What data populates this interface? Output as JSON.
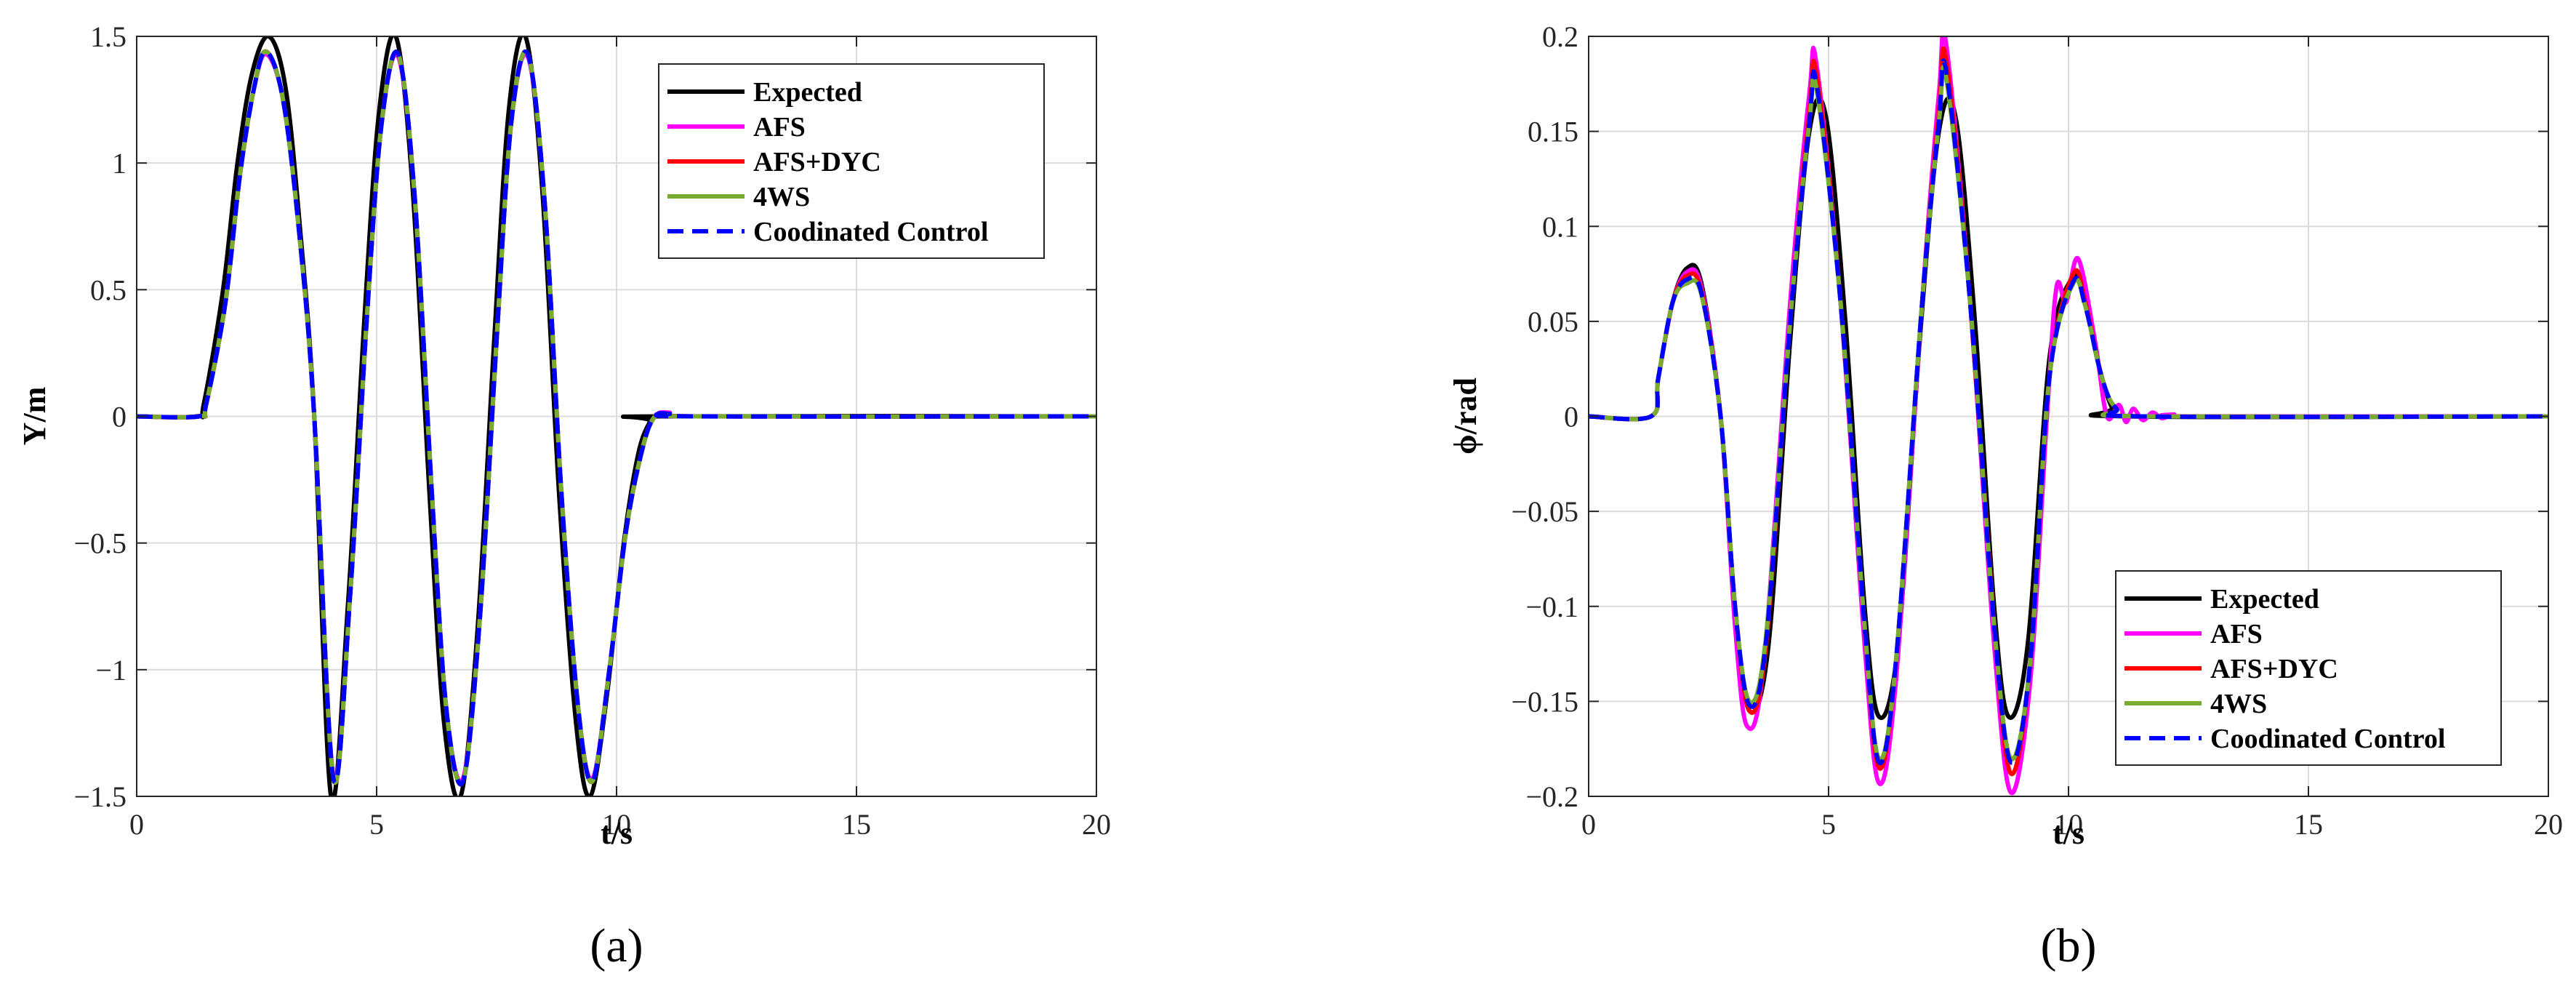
{
  "colors": {
    "Expected": "#000000",
    "AFS": "#ff00ff",
    "AFS+DYC": "#ff0000",
    "4WS": "#77ac30",
    "Coodinated Control": "#0000ff",
    "grid": "#dcdcdc",
    "axis": "#262626"
  },
  "chart_data": [
    {
      "type": "line",
      "panel_label": "(a)",
      "xlabel": "t/s",
      "ylabel": "Y/m",
      "xlim": [
        0,
        20
      ],
      "ylim": [
        -1.5,
        1.5
      ],
      "xticks": [
        0,
        5,
        10,
        15,
        20
      ],
      "yticks": [
        -1.5,
        -1,
        -0.5,
        0,
        0.5,
        1,
        1.5
      ],
      "xtick_labels": [
        "0",
        "5",
        "10",
        "15",
        "20"
      ],
      "ytick_labels": [
        "−1.5",
        "−1",
        "−0.5",
        "0",
        "0.5",
        "1",
        "1.5"
      ],
      "grid": true,
      "legend_position": "top-right",
      "series": [
        {
          "name": "Expected",
          "style": "solid",
          "x": [
            0,
            1.25,
            1.4,
            1.8,
            2.1,
            2.4,
            2.75,
            3.1,
            3.4,
            3.7,
            4.05,
            4.4,
            4.75,
            5.05,
            5.4,
            5.75,
            6.1,
            6.4,
            6.75,
            7.1,
            7.45,
            7.75,
            8.1,
            8.45,
            8.8,
            9.15,
            9.45,
            9.8,
            10.15,
            10.45,
            10.7,
            10.85,
            20
          ],
          "y": [
            0,
            0,
            0.05,
            0.5,
            1.0,
            1.35,
            1.5,
            1.3,
            0.75,
            0,
            -1.5,
            -0.75,
            0.4,
            1.2,
            1.5,
            0.9,
            -0.3,
            -1.2,
            -1.5,
            -0.85,
            0.3,
            1.2,
            1.5,
            0.9,
            -0.3,
            -1.2,
            -1.5,
            -1.1,
            -0.5,
            -0.15,
            -0.02,
            0,
            0
          ]
        },
        {
          "name": "AFS",
          "style": "solid",
          "x": [
            0,
            1.3,
            1.45,
            1.85,
            2.15,
            2.45,
            2.7,
            3.05,
            3.4,
            3.7,
            4.1,
            4.45,
            4.8,
            5.1,
            5.45,
            5.8,
            6.15,
            6.45,
            6.8,
            7.15,
            7.5,
            7.8,
            8.15,
            8.5,
            8.85,
            9.2,
            9.5,
            9.85,
            10.2,
            10.55,
            10.8,
            11.1,
            11.6,
            20
          ],
          "y": [
            0,
            0,
            0.05,
            0.45,
            0.95,
            1.3,
            1.43,
            1.25,
            0.7,
            0,
            -1.42,
            -0.7,
            0.4,
            1.15,
            1.42,
            0.85,
            -0.3,
            -1.15,
            -1.43,
            -0.8,
            0.3,
            1.15,
            1.42,
            0.85,
            -0.3,
            -1.15,
            -1.43,
            -1.0,
            -0.45,
            -0.12,
            0.0,
            0.015,
            0,
            0
          ]
        },
        {
          "name": "AFS+DYC",
          "style": "solid",
          "x": [
            0,
            1.3,
            1.45,
            1.85,
            2.15,
            2.45,
            2.7,
            3.05,
            3.4,
            3.7,
            4.1,
            4.45,
            4.8,
            5.1,
            5.45,
            5.8,
            6.15,
            6.45,
            6.8,
            7.15,
            7.5,
            7.8,
            8.15,
            8.5,
            8.85,
            9.2,
            9.5,
            9.85,
            10.2,
            10.55,
            10.8,
            11.1,
            11.6,
            20
          ],
          "y": [
            0,
            0,
            0.05,
            0.45,
            0.95,
            1.3,
            1.44,
            1.25,
            0.7,
            0,
            -1.43,
            -0.7,
            0.4,
            1.15,
            1.43,
            0.85,
            -0.3,
            -1.15,
            -1.44,
            -0.8,
            0.3,
            1.15,
            1.43,
            0.85,
            -0.3,
            -1.15,
            -1.44,
            -1.0,
            -0.45,
            -0.12,
            0.0,
            0.01,
            0,
            0
          ]
        },
        {
          "name": "4WS",
          "style": "solid",
          "x": [
            0,
            1.3,
            1.45,
            1.85,
            2.15,
            2.45,
            2.7,
            3.05,
            3.4,
            3.7,
            4.1,
            4.45,
            4.8,
            5.1,
            5.45,
            5.8,
            6.15,
            6.45,
            6.8,
            7.15,
            7.5,
            7.8,
            8.15,
            8.5,
            8.85,
            9.2,
            9.5,
            9.85,
            10.2,
            10.55,
            10.8,
            11.1,
            11.6,
            20
          ],
          "y": [
            0,
            0,
            0.05,
            0.45,
            0.95,
            1.3,
            1.44,
            1.25,
            0.7,
            0,
            -1.43,
            -0.7,
            0.4,
            1.15,
            1.43,
            0.85,
            -0.3,
            -1.15,
            -1.44,
            -0.8,
            0.3,
            1.15,
            1.43,
            0.85,
            -0.3,
            -1.15,
            -1.44,
            -1.0,
            -0.45,
            -0.12,
            0.0,
            0.01,
            0,
            0
          ]
        },
        {
          "name": "Coodinated Control",
          "style": "dashed",
          "x": [
            0,
            1.3,
            1.45,
            1.85,
            2.15,
            2.45,
            2.7,
            3.05,
            3.4,
            3.7,
            4.1,
            4.45,
            4.8,
            5.1,
            5.45,
            5.8,
            6.15,
            6.45,
            6.8,
            7.15,
            7.5,
            7.8,
            8.15,
            8.5,
            8.85,
            9.2,
            9.5,
            9.85,
            10.2,
            10.55,
            10.8,
            11.1,
            11.6,
            20
          ],
          "y": [
            0,
            0,
            0.05,
            0.45,
            0.95,
            1.3,
            1.44,
            1.25,
            0.7,
            0,
            -1.43,
            -0.7,
            0.4,
            1.15,
            1.43,
            0.85,
            -0.3,
            -1.15,
            -1.44,
            -0.8,
            0.3,
            1.15,
            1.43,
            0.85,
            -0.3,
            -1.15,
            -1.44,
            -1.0,
            -0.45,
            -0.12,
            0.0,
            0.01,
            0,
            0
          ]
        }
      ]
    },
    {
      "type": "line",
      "panel_label": "(b)",
      "xlabel": "t/s",
      "ylabel": "ϕ/rad",
      "xlim": [
        0,
        20
      ],
      "ylim": [
        -0.2,
        0.2
      ],
      "xticks": [
        0,
        5,
        10,
        15,
        20
      ],
      "yticks": [
        -0.2,
        -0.15,
        -0.1,
        -0.05,
        0,
        0.05,
        0.1,
        0.15,
        0.2
      ],
      "xtick_labels": [
        "0",
        "5",
        "10",
        "15",
        "20"
      ],
      "ytick_labels": [
        "−0.2",
        "−0.15",
        "−0.1",
        "−0.05",
        "0",
        "0.05",
        "0.1",
        "0.15",
        "0.2"
      ],
      "grid": true,
      "legend_position": "bottom-right",
      "series": [
        {
          "name": "Expected",
          "style": "solid",
          "x": [
            0,
            1.3,
            1.45,
            1.75,
            2.05,
            2.35,
            2.75,
            3.05,
            3.35,
            3.75,
            4.2,
            4.6,
            4.95,
            5.35,
            5.75,
            6.05,
            6.45,
            6.9,
            7.3,
            7.65,
            8.05,
            8.45,
            8.75,
            9.15,
            9.6,
            10.05,
            10.3,
            10.6,
            10.9,
            11.2,
            20
          ],
          "y": [
            0,
            0,
            0.02,
            0.06,
            0.078,
            0.07,
            0,
            -0.1,
            -0.155,
            -0.12,
            0.04,
            0.15,
            0.157,
            0.05,
            -0.1,
            -0.158,
            -0.12,
            0.04,
            0.15,
            0.157,
            0.05,
            -0.1,
            -0.158,
            -0.12,
            0.03,
            0.072,
            0.065,
            0.03,
            0.005,
            0,
            0
          ]
        },
        {
          "name": "AFS",
          "style": "solid",
          "x": [
            0,
            1.3,
            1.45,
            1.75,
            2.05,
            2.35,
            2.75,
            3.05,
            3.3,
            3.65,
            4.2,
            4.6,
            4.75,
            5.25,
            5.75,
            6.05,
            6.4,
            6.95,
            7.3,
            7.45,
            7.95,
            8.45,
            8.8,
            9.2,
            9.55,
            9.75,
            9.95,
            10.2,
            10.55,
            10.8,
            11.05,
            11.2,
            11.35,
            11.55,
            11.75,
            11.95,
            12.2,
            12.6,
            20
          ],
          "y": [
            0,
            0,
            0.02,
            0.06,
            0.076,
            0.068,
            0,
            -0.11,
            -0.163,
            -0.13,
            0.06,
            0.17,
            0.185,
            0.06,
            -0.12,
            -0.193,
            -0.14,
            0.06,
            0.17,
            0.196,
            0.06,
            -0.12,
            -0.198,
            -0.14,
            0.0,
            0.068,
            0.06,
            0.083,
            0.04,
            0.0,
            0.006,
            -0.003,
            0.004,
            -0.002,
            0.002,
            -0.001,
            0.001,
            0,
            0
          ]
        },
        {
          "name": "AFS+DYC",
          "style": "solid",
          "x": [
            0,
            1.3,
            1.45,
            1.75,
            2.05,
            2.35,
            2.75,
            3.05,
            3.35,
            3.7,
            4.2,
            4.6,
            4.75,
            5.25,
            5.75,
            6.05,
            6.4,
            6.95,
            7.3,
            7.45,
            7.95,
            8.45,
            8.8,
            9.2,
            9.6,
            10.1,
            10.35,
            10.7,
            11.0,
            11.5,
            20
          ],
          "y": [
            0,
            0,
            0.02,
            0.06,
            0.074,
            0.066,
            0,
            -0.1,
            -0.155,
            -0.12,
            0.05,
            0.16,
            0.18,
            0.06,
            -0.11,
            -0.185,
            -0.13,
            0.06,
            0.16,
            0.188,
            0.06,
            -0.11,
            -0.188,
            -0.13,
            0.02,
            0.075,
            0.06,
            0.02,
            0.004,
            0,
            0
          ]
        },
        {
          "name": "4WS",
          "style": "solid",
          "x": [
            0,
            1.3,
            1.45,
            1.75,
            2.05,
            2.35,
            2.75,
            3.05,
            3.35,
            3.7,
            4.2,
            4.6,
            4.75,
            5.25,
            5.75,
            6.05,
            6.4,
            6.95,
            7.3,
            7.45,
            7.95,
            8.45,
            8.8,
            9.2,
            9.6,
            10.1,
            10.35,
            10.7,
            11.0,
            11.5,
            20
          ],
          "y": [
            0,
            0,
            0.02,
            0.06,
            0.07,
            0.064,
            0,
            -0.1,
            -0.15,
            -0.115,
            0.05,
            0.155,
            0.172,
            0.06,
            -0.11,
            -0.18,
            -0.13,
            0.06,
            0.155,
            0.178,
            0.06,
            -0.11,
            -0.18,
            -0.13,
            0.02,
            0.07,
            0.058,
            0.02,
            0.004,
            0,
            0
          ]
        },
        {
          "name": "Coodinated Control",
          "style": "dashed",
          "x": [
            0,
            1.3,
            1.45,
            1.75,
            2.05,
            2.35,
            2.75,
            3.05,
            3.35,
            3.7,
            4.2,
            4.6,
            4.75,
            5.25,
            5.75,
            6.05,
            6.4,
            6.95,
            7.3,
            7.45,
            7.95,
            8.45,
            8.8,
            9.2,
            9.6,
            10.1,
            10.35,
            10.7,
            11.0,
            11.5,
            20
          ],
          "y": [
            0,
            0,
            0.02,
            0.06,
            0.072,
            0.065,
            0,
            -0.1,
            -0.152,
            -0.118,
            0.05,
            0.155,
            0.175,
            0.06,
            -0.11,
            -0.182,
            -0.13,
            0.06,
            0.155,
            0.182,
            0.06,
            -0.11,
            -0.182,
            -0.13,
            0.02,
            0.071,
            0.058,
            0.02,
            0.004,
            0,
            0
          ]
        }
      ]
    }
  ]
}
